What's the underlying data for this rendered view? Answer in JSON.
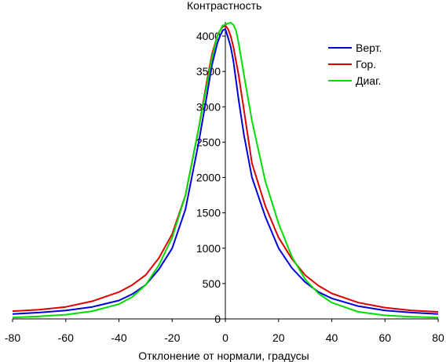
{
  "chart_data": {
    "type": "line",
    "title": "",
    "ylabel": "Контрастность",
    "xlabel": "Отклонение от нормали, градусы",
    "xlim": [
      -80,
      80
    ],
    "ylim": [
      0,
      4200
    ],
    "xticks": [
      -80,
      -60,
      -40,
      -20,
      0,
      20,
      40,
      60,
      80
    ],
    "yticks": [
      0,
      500,
      1000,
      1500,
      2000,
      2500,
      3000,
      3500,
      4000
    ],
    "x_tick_labels": [
      "-80",
      "-60",
      "-40",
      "-20",
      "0",
      "20",
      "40",
      "60",
      "80"
    ],
    "y_tick_labels": [
      "0",
      "500",
      "1000",
      "1500",
      "2000",
      "2500",
      "3000",
      "3500",
      "4000"
    ],
    "grid": false,
    "legend_position": "top-right",
    "series": [
      {
        "name": "Верт.",
        "color": "#0000dd",
        "x": [
          -80,
          -70,
          -60,
          -50,
          -40,
          -35,
          -30,
          -25,
          -20,
          -15,
          -10,
          -7,
          -5,
          -3,
          -2,
          -1,
          0,
          1,
          2,
          3,
          5,
          7,
          10,
          15,
          20,
          25,
          30,
          35,
          40,
          50,
          60,
          70,
          80
        ],
        "y": [
          70,
          90,
          120,
          170,
          260,
          350,
          480,
          700,
          1000,
          1550,
          2500,
          3150,
          3600,
          3900,
          4000,
          4080,
          4100,
          3980,
          3850,
          3650,
          3100,
          2600,
          2000,
          1450,
          1000,
          720,
          520,
          380,
          290,
          180,
          120,
          90,
          70
        ]
      },
      {
        "name": "Гор.",
        "color": "#dd0000",
        "x": [
          -80,
          -70,
          -60,
          -50,
          -40,
          -35,
          -30,
          -25,
          -20,
          -15,
          -10,
          -7,
          -5,
          -3,
          -2,
          -1,
          0,
          1,
          2,
          3,
          5,
          7,
          10,
          15,
          20,
          25,
          30,
          35,
          40,
          50,
          60,
          70,
          80
        ],
        "y": [
          110,
          130,
          170,
          250,
          380,
          480,
          620,
          860,
          1200,
          1750,
          2700,
          3350,
          3750,
          4000,
          4080,
          4130,
          4150,
          4100,
          4000,
          3850,
          3450,
          2950,
          2200,
          1600,
          1150,
          850,
          620,
          470,
          360,
          230,
          160,
          120,
          100
        ]
      },
      {
        "name": "Диаг.",
        "color": "#00dd00",
        "x": [
          -80,
          -70,
          -60,
          -50,
          -40,
          -35,
          -30,
          -25,
          -20,
          -15,
          -10,
          -7,
          -5,
          -3,
          -1,
          0,
          1,
          2,
          3,
          4,
          5,
          7,
          10,
          15,
          20,
          25,
          30,
          35,
          40,
          50,
          60,
          70,
          80
        ],
        "y": [
          20,
          35,
          60,
          110,
          210,
          310,
          480,
          760,
          1150,
          1750,
          2700,
          3300,
          3700,
          4000,
          4150,
          4160,
          4180,
          4190,
          4160,
          4080,
          3900,
          3450,
          2800,
          1950,
          1350,
          880,
          560,
          360,
          230,
          100,
          50,
          30,
          20
        ]
      }
    ]
  }
}
